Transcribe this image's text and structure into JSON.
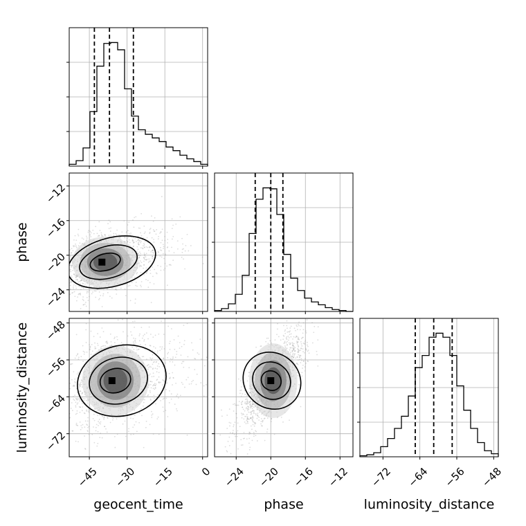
{
  "chart_data": {
    "type": "corner",
    "parameters": [
      {
        "name": "geocent_time",
        "label": "geocent_time",
        "range": [
          -53,
          2
        ],
        "ticks": [
          -45,
          -30,
          -15,
          0
        ],
        "tick_labels": [
          "−45",
          "−30",
          "−15",
          "0"
        ],
        "quantiles": [
          -43,
          -37,
          -27.5
        ]
      },
      {
        "name": "phase",
        "label": "phase",
        "range": [
          -26.5,
          -10.5
        ],
        "ticks": [
          -24,
          -20,
          -16,
          -12
        ],
        "tick_labels": [
          "−24",
          "−20",
          "−16",
          "−12"
        ],
        "quantiles": [
          -21.8,
          -20,
          -18.6
        ]
      },
      {
        "name": "luminosity_distance",
        "label": "luminosity_distance",
        "range": [
          -77,
          -47
        ],
        "ticks": [
          -72,
          -64,
          -56,
          -48
        ],
        "tick_labels": [
          "−72",
          "−64",
          "−56",
          "−48"
        ],
        "quantiles": [
          -65,
          -61,
          -57
        ]
      }
    ],
    "histograms": {
      "geocent_time": {
        "bin_edges": [
          -53,
          -50.25,
          -47.5,
          -44.75,
          -42,
          -39.25,
          -36.5,
          -33.75,
          -31,
          -28.25,
          -25.5,
          -22.75,
          -20,
          -17.25,
          -14.5,
          -11.75,
          -9,
          -6.25,
          -3.5,
          -0.75,
          2
        ],
        "counts": [
          2,
          6,
          20,
          60,
          110,
          135,
          136,
          128,
          85,
          55,
          40,
          35,
          31,
          27,
          21,
          17,
          12,
          8,
          5,
          2
        ]
      },
      "phase": {
        "bin_edges": [
          -26.5,
          -25.7,
          -24.9,
          -24.1,
          -23.3,
          -22.5,
          -21.7,
          -20.9,
          -20.1,
          -19.3,
          -18.5,
          -17.7,
          -16.9,
          -16.1,
          -15.3,
          -14.5,
          -13.7,
          -12.9,
          -12.1,
          -11.3,
          -10.5
        ],
        "counts": [
          1,
          3,
          8,
          18,
          38,
          82,
          118,
          130,
          129,
          102,
          60,
          35,
          22,
          14,
          10,
          7,
          4,
          2,
          1,
          0
        ]
      },
      "luminosity_distance": {
        "bin_edges": [
          -77,
          -75.5,
          -74,
          -72.5,
          -71,
          -69.5,
          -68,
          -66.5,
          -65,
          -63.5,
          -62,
          -60.5,
          -59,
          -57.5,
          -56,
          -54.5,
          -53,
          -51.5,
          -50,
          -48.5,
          -47
        ],
        "counts": [
          1,
          2,
          4,
          10,
          18,
          28,
          40,
          60,
          88,
          100,
          118,
          122,
          118,
          100,
          70,
          46,
          28,
          14,
          6,
          3
        ]
      }
    },
    "contour_panels": [
      {
        "x": "geocent_time",
        "y": "phase"
      },
      {
        "x": "geocent_time",
        "y": "luminosity_distance"
      },
      {
        "x": "phase",
        "y": "luminosity_distance"
      }
    ],
    "grid": true
  }
}
